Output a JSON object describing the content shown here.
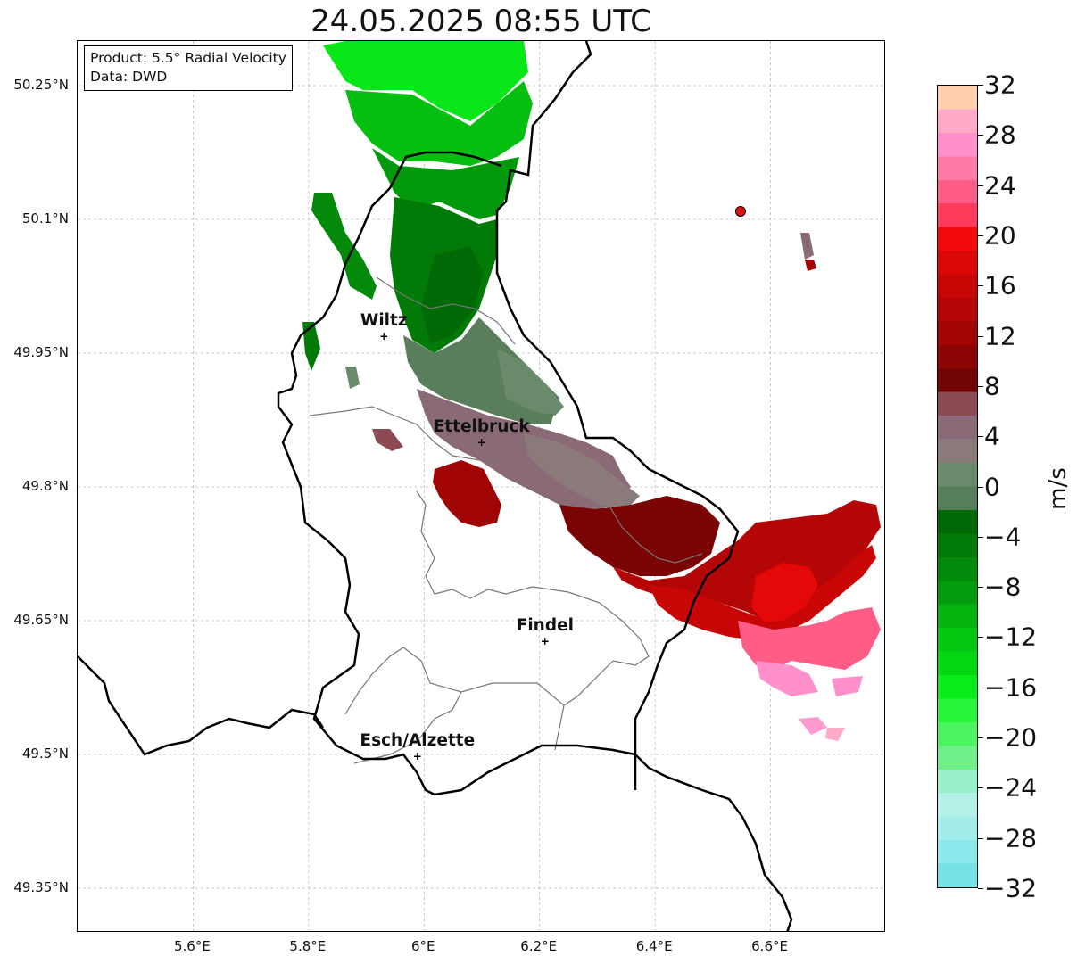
{
  "title": "24.05.2025 08:55 UTC",
  "info": {
    "product": "Product: 5.5° Radial Velocity",
    "data": "Data: DWD"
  },
  "axes": {
    "lat_labels": [
      "50.25°N",
      "50.1°N",
      "49.95°N",
      "49.8°N",
      "49.65°N",
      "49.5°N",
      "49.35°N"
    ],
    "lon_labels": [
      "5.6°E",
      "5.8°E",
      "6°E",
      "6.2°E",
      "6.4°E",
      "6.6°E"
    ],
    "lat_values": [
      50.25,
      50.1,
      49.95,
      49.8,
      49.65,
      49.5,
      49.35
    ],
    "lon_values": [
      5.6,
      5.8,
      6.0,
      6.2,
      6.4,
      6.6
    ],
    "lat_range": [
      49.3,
      50.3
    ],
    "lon_range": [
      5.4,
      6.8
    ],
    "grid": true
  },
  "cities": [
    {
      "name": "Wiltz",
      "lat": 49.968,
      "lon": 5.932
    },
    {
      "name": "Ettelbruck",
      "lat": 49.849,
      "lon": 6.101
    },
    {
      "name": "Findel",
      "lat": 49.626,
      "lon": 6.211
    },
    {
      "name": "Esch/Alzette",
      "lat": 49.497,
      "lon": 5.99
    }
  ],
  "radar_site": {
    "lat": 50.109,
    "lon": 6.548,
    "color": "#dd1111"
  },
  "colorbar": {
    "label": "m/s",
    "min": -32,
    "max": 32,
    "tick_labels": [
      "−32",
      "−28",
      "−24",
      "−20",
      "−16",
      "−12",
      "−8",
      "−4",
      "0",
      "4",
      "8",
      "12",
      "16",
      "20",
      "24",
      "28",
      "32"
    ],
    "tick_values": [
      -32,
      -28,
      -24,
      -20,
      -16,
      -12,
      -8,
      -4,
      0,
      4,
      8,
      12,
      16,
      20,
      24,
      28,
      32
    ],
    "colors": [
      "#77e2e6",
      "#8ae8ea",
      "#a2ece9",
      "#b4f0e6",
      "#98f0c8",
      "#70f08a",
      "#4cf460",
      "#28f63a",
      "#08ec18",
      "#04d812",
      "#04c810",
      "#04b40e",
      "#029c0c",
      "#028a0a",
      "#027a08",
      "#016a06",
      "#567e58",
      "#6a8a6c",
      "#8a7b7a",
      "#8a6a76",
      "#8c4a52",
      "#720404",
      "#8c0404",
      "#a00404",
      "#b40606",
      "#c80606",
      "#dc0808",
      "#f40a0a",
      "#ff3a5a",
      "#ff5c86",
      "#ff7aa6",
      "#ff90cc",
      "#ffaac8",
      "#ffd0b0"
    ]
  },
  "chart_data": {
    "type": "heatmap",
    "title": "24.05.2025 08:55 UTC",
    "xlabel": "",
    "ylabel": "",
    "value_range": [
      -32,
      32
    ],
    "cells": [
      {
        "lat": 50.26,
        "lon": 5.92,
        "value": -20
      },
      {
        "lat": 50.22,
        "lon": 6.04,
        "value": -16
      },
      {
        "lat": 50.18,
        "lon": 6.06,
        "value": -12
      },
      {
        "lat": 50.12,
        "lon": 6.04,
        "value": -8
      },
      {
        "lat": 50.05,
        "lon": 6.0,
        "value": -6
      },
      {
        "lat": 49.97,
        "lon": 6.05,
        "value": -2
      },
      {
        "lat": 49.92,
        "lon": 6.12,
        "value": 0
      },
      {
        "lat": 49.85,
        "lon": 6.1,
        "value": 2
      },
      {
        "lat": 49.78,
        "lon": 6.08,
        "value": 12
      },
      {
        "lat": 49.79,
        "lon": 6.28,
        "value": 2
      },
      {
        "lat": 49.74,
        "lon": 6.38,
        "value": 8
      },
      {
        "lat": 49.72,
        "lon": 6.52,
        "value": 14
      },
      {
        "lat": 49.7,
        "lon": 6.64,
        "value": 18
      },
      {
        "lat": 49.73,
        "lon": 6.74,
        "value": 14
      },
      {
        "lat": 49.62,
        "lon": 6.66,
        "value": 24
      },
      {
        "lat": 49.62,
        "lon": 6.74,
        "value": 26
      },
      {
        "lat": 49.55,
        "lon": 6.72,
        "value": 28
      }
    ]
  }
}
